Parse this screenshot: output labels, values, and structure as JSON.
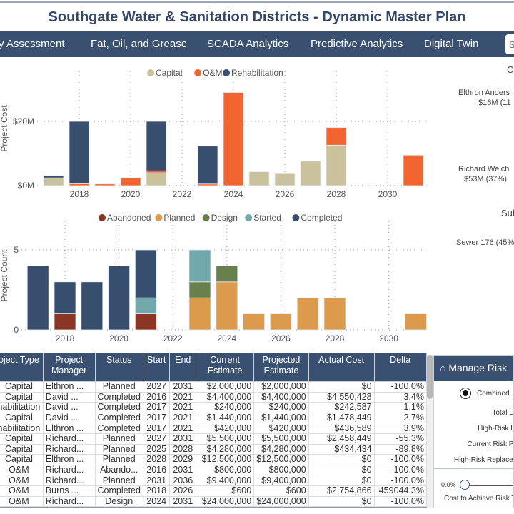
{
  "title": "Southgate Water & Sanitation Districts - Dynamic Master Plan",
  "nav": {
    "items": [
      "y Assessment",
      "Fat, Oil, and Grease",
      "SCADA Analytics",
      "Predictive Analytics",
      "Digital Twin"
    ],
    "search_placeholder": "S"
  },
  "colors": {
    "capital": "#c9c29c",
    "om": "#f26430",
    "rehab": "#374e6f",
    "abandoned": "#8b3524",
    "planned": "#dc9b4c",
    "design": "#667f4c",
    "started": "#71a8ac",
    "completed": "#374e6f",
    "nav": "#3a5071"
  },
  "chart_data": [
    {
      "type": "bar",
      "stacked": true,
      "title": "",
      "ylabel": "Project Cost",
      "xlabel": "",
      "ylim": [
        0,
        30
      ],
      "yticks": [
        0,
        20
      ],
      "ytick_labels": [
        "$0M",
        "$20M"
      ],
      "xticks": [
        "2018",
        "2020",
        "2022",
        "2024",
        "2026",
        "2028",
        "2030"
      ],
      "legend": [
        "Capital",
        "O&M",
        "Rehabilitation"
      ],
      "legend_position": "top",
      "categories": [
        2017,
        2018,
        2019,
        2020,
        2021,
        2022,
        2023,
        2024,
        2025,
        2026,
        2027,
        2028,
        2029,
        2030,
        2031
      ],
      "series": [
        {
          "name": "Capital",
          "values": [
            2.4,
            0,
            0,
            0,
            4.0,
            0,
            0,
            0,
            4.3,
            3.7,
            7.6,
            12.6,
            0,
            0,
            0
          ]
        },
        {
          "name": "O&M",
          "values": [
            0,
            0.6,
            0.5,
            2.5,
            0.6,
            0,
            0.5,
            29,
            0,
            0,
            0,
            5.5,
            0,
            0,
            9.5
          ]
        },
        {
          "name": "Rehabilitation",
          "values": [
            0.7,
            19.4,
            0,
            0,
            15.4,
            0,
            11.8,
            0,
            0,
            0,
            0,
            0,
            0,
            0,
            0
          ]
        }
      ]
    },
    {
      "type": "bar",
      "stacked": true,
      "title": "",
      "ylabel": "Project Count",
      "xlabel": "",
      "ylim": [
        0,
        5.5
      ],
      "yticks": [
        0,
        5
      ],
      "ytick_labels": [
        "0",
        "5"
      ],
      "xticks": [
        "2018",
        "2020",
        "2022",
        "2024",
        "2026",
        "2028",
        "2030"
      ],
      "legend": [
        "Abandoned",
        "Planned",
        "Design",
        "Started",
        "Completed"
      ],
      "legend_position": "top",
      "categories": [
        2017,
        2018,
        2019,
        2020,
        2021,
        2022,
        2023,
        2024,
        2025,
        2026,
        2027,
        2028,
        2029,
        2030,
        2031
      ],
      "series": [
        {
          "name": "Abandoned",
          "values": [
            0,
            1,
            0,
            0,
            1,
            0,
            0,
            0,
            0,
            0,
            0,
            0,
            0,
            0,
            0
          ]
        },
        {
          "name": "Planned",
          "values": [
            0,
            0,
            0,
            0,
            0,
            0,
            2,
            3,
            1,
            1,
            2,
            2,
            0,
            0,
            1
          ]
        },
        {
          "name": "Design",
          "values": [
            0,
            0,
            0,
            0,
            0,
            0,
            1,
            1,
            0,
            0,
            0,
            0,
            0,
            0,
            0
          ]
        },
        {
          "name": "Started",
          "values": [
            0,
            0,
            0,
            0,
            1,
            0,
            2,
            0,
            0,
            0,
            0,
            0,
            0,
            0,
            0
          ]
        },
        {
          "name": "Completed",
          "values": [
            4,
            2,
            3,
            4,
            3,
            0,
            0,
            0,
            0,
            0,
            0,
            0,
            0,
            0,
            0
          ]
        }
      ]
    }
  ],
  "right_panel": {
    "title1": "C",
    "label1_name": "Elthron Anders",
    "label1_value": "$16M (11",
    "label2_name": "Richard Welch",
    "label2_value": "$53M (37%)",
    "title2": "Sub",
    "label3": "Sewer 176 (45%"
  },
  "table": {
    "headers": [
      "oject Type",
      "Project Manager",
      "Status",
      "Start",
      "End",
      "Current Estimate",
      "Projected Estimate",
      "Actual Cost",
      "Delta"
    ],
    "rows": [
      [
        "Capital",
        "Elthron ...",
        "Planned",
        "2027",
        "2031",
        "$2,000,000",
        "$2,000,000",
        "$0",
        "-100.0%"
      ],
      [
        "Capital",
        "David ...",
        "Completed",
        "2016",
        "2021",
        "$4,400,000",
        "$4,400,000",
        "$4,550,428",
        "3.4%"
      ],
      [
        "habilitation",
        "David ...",
        "Completed",
        "2017",
        "2021",
        "$240,000",
        "$240,000",
        "$242,587",
        "1.1%"
      ],
      [
        "Capital",
        "David ...",
        "Completed",
        "2017",
        "2021",
        "$1,440,000",
        "$1,440,000",
        "$1,478,449",
        "2.7%"
      ],
      [
        "habilitation",
        "Elthron ...",
        "Completed",
        "2017",
        "2021",
        "$420,000",
        "$420,000",
        "$436,589",
        "3.9%"
      ],
      [
        "Capital",
        "Richard...",
        "Planned",
        "2027",
        "2031",
        "$5,500,000",
        "$5,500,000",
        "$2,458,449",
        "-55.3%"
      ],
      [
        "Capital",
        "Richard...",
        "Planned",
        "2025",
        "2028",
        "$4,280,000",
        "$4,280,000",
        "$434,434",
        "-89.8%"
      ],
      [
        "Capital",
        "Elthron ...",
        "Planned",
        "2028",
        "2029",
        "$12,500,000",
        "$12,500,000",
        "$0",
        "-100.0%"
      ],
      [
        "O&M",
        "Richard...",
        "Abando...",
        "2016",
        "2031",
        "$800,000",
        "$800,000",
        "$0",
        "-100.0%"
      ],
      [
        "O&M",
        "Richard...",
        "Planned",
        "2031",
        "2036",
        "$9,400,000",
        "$9,400,000",
        "$0",
        "-100.0%"
      ],
      [
        "O&M",
        "Burns ...",
        "Completed",
        "2018",
        "2026",
        "$600",
        "$600",
        "$2,754,866",
        "459044.3%"
      ],
      [
        "O&M",
        "Richard...",
        "Design",
        "2024",
        "2031",
        "$24,000,000",
        "$24,000,000",
        "$0",
        "-100.0%"
      ]
    ]
  },
  "risk": {
    "title": "Manage Risk",
    "radio_label": "Combined",
    "labels": [
      "Total Li",
      "High-Risk Li",
      "Current Risk Pe",
      "High-Risk Replacem"
    ],
    "slider_value": "0.0%",
    "slider_caption": "Cost to Achieve Risk Th"
  }
}
